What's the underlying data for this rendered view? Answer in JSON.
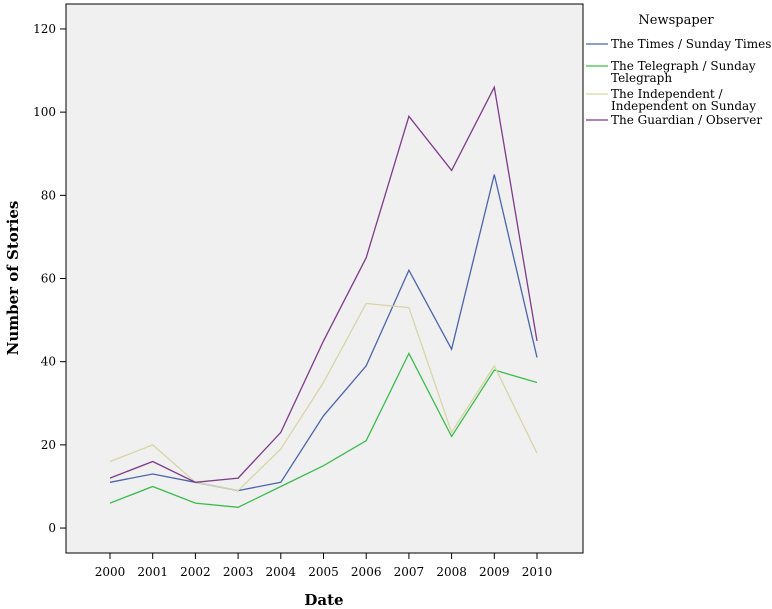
{
  "chart_data": {
    "type": "line",
    "xlabel": "Date",
    "ylabel": "Number of Stories",
    "x": [
      2000,
      2001,
      2002,
      2003,
      2004,
      2005,
      2006,
      2007,
      2008,
      2009,
      2010
    ],
    "ylim": [
      -6,
      126
    ],
    "yticks": [
      0,
      20,
      40,
      60,
      80,
      100,
      120
    ],
    "grid": false,
    "plot_background": "#f0f0f0",
    "legend": {
      "title": "Newspaper",
      "placement": "right"
    },
    "series": [
      {
        "name": "The Times / Sunday Times",
        "legend_lines": [
          "The Times / Sunday Times"
        ],
        "color": "#4a65a8",
        "values": [
          11,
          13,
          11,
          9,
          11,
          27,
          39,
          62,
          43,
          85,
          41
        ]
      },
      {
        "name": "The Telegraph / Sunday Telegraph",
        "legend_lines": [
          "The Telegraph / Sunday",
          "Telegraph"
        ],
        "color": "#3cbc4c",
        "values": [
          6,
          10,
          6,
          5,
          10,
          15,
          21,
          42,
          22,
          38,
          35
        ]
      },
      {
        "name": "The Independent / Independent on Sunday",
        "legend_lines": [
          "The Independent /",
          "Independent on Sunday"
        ],
        "color": "#d8d5a8",
        "values": [
          16,
          20,
          11,
          9,
          19,
          35,
          54,
          53,
          23,
          39,
          18
        ]
      },
      {
        "name": "The Guardian / Observer",
        "legend_lines": [
          "The Guardian / Observer"
        ],
        "color": "#7e3b8a",
        "values": [
          12,
          16,
          11,
          12,
          23,
          45,
          65,
          99,
          86,
          106,
          45
        ]
      }
    ]
  }
}
